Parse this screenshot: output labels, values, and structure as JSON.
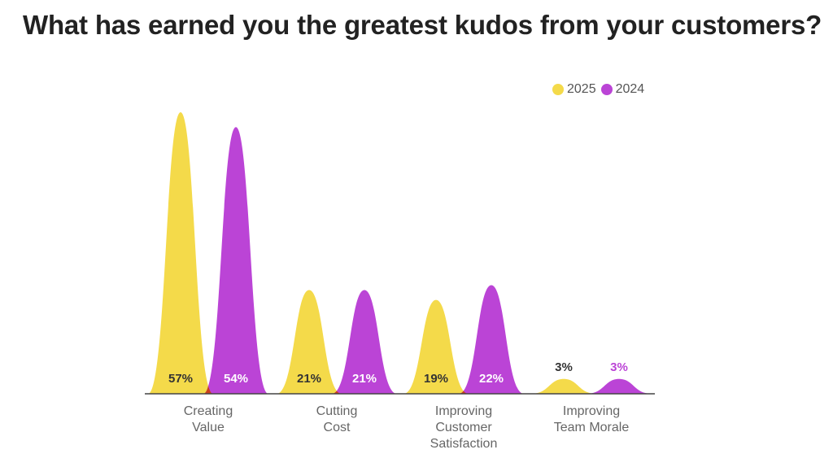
{
  "chart_data": {
    "type": "area",
    "title": "What has earned you the greatest kudos from your customers?",
    "categories": [
      [
        "Creating",
        "Value"
      ],
      [
        "Cutting",
        "Cost"
      ],
      [
        "Improving",
        "Customer",
        "Satisfaction"
      ],
      [
        "Improving",
        "Team Morale"
      ]
    ],
    "series": [
      {
        "name": "2025",
        "color": "#f4da4a",
        "values": [
          57,
          21,
          19,
          3
        ],
        "labels": [
          "57%",
          "21%",
          "19%",
          "3%"
        ]
      },
      {
        "name": "2024",
        "color": "#bb44d6",
        "values": [
          54,
          21,
          22,
          3
        ],
        "labels": [
          "54%",
          "21%",
          "22%",
          "3%"
        ]
      }
    ],
    "overlap_color": "#c8401c",
    "ylim": [
      0,
      57
    ],
    "legend": "top-right",
    "grid": false
  }
}
